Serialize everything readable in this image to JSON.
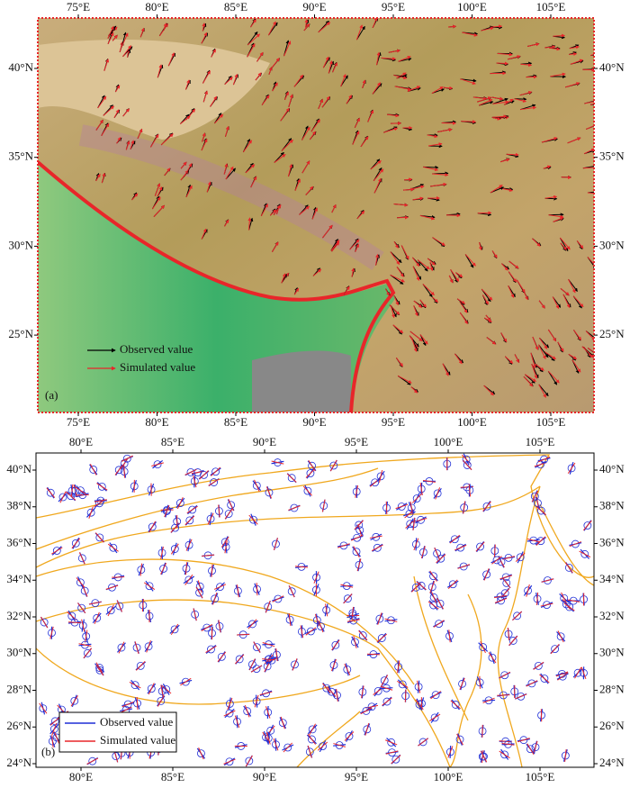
{
  "panels": [
    {
      "label": "(a)",
      "x_ticks_top": [
        "75°E",
        "80°E",
        "85°E",
        "90°E",
        "95°E",
        "100°E",
        "105°E"
      ],
      "x_ticks_bottom": [
        "75°E",
        "80°E",
        "85°E",
        "90°E",
        "95°E",
        "100°E",
        "105°E"
      ],
      "y_ticks_left": [
        "40°N",
        "35°N",
        "30°N",
        "25°N"
      ],
      "y_ticks_right": [
        "40°N",
        "35°N",
        "30°N",
        "25°N"
      ],
      "legend": [
        "Observed value",
        "Simulated value"
      ]
    },
    {
      "label": "(b)",
      "x_ticks_top": [
        "80°E",
        "85°E",
        "90°E",
        "95°E",
        "100°E",
        "105°E"
      ],
      "x_ticks_bottom": [
        "80°E",
        "85°E",
        "90°E",
        "95°E",
        "100°E",
        "105°E"
      ],
      "y_ticks_left": [
        "40°N",
        "38°N",
        "36°N",
        "34°N",
        "32°N",
        "30°N",
        "28°N",
        "26°N",
        "24°N"
      ],
      "y_ticks_right": [
        "40°N",
        "38°N",
        "36°N",
        "34°N",
        "32°N",
        "30°N",
        "28°N",
        "26°N",
        "24°N"
      ],
      "legend": [
        "Observed value",
        "Simulated value"
      ]
    }
  ]
}
